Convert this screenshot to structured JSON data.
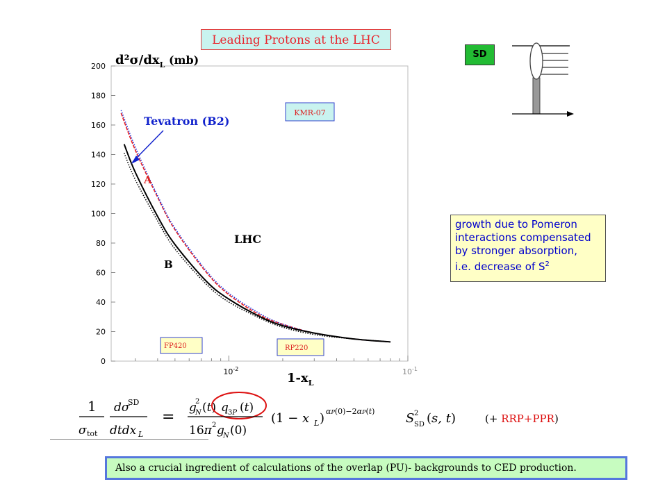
{
  "slide": {
    "title": "Leading Protons  at the LHC",
    "sd_label": "SD",
    "note_lines": [
      "growth due to Pomeron",
      "interactions compensated",
      "by stronger absorption,",
      "i.e. decrease of S"
    ],
    "note_superscript": "2",
    "rrp_prefix": "(+ ",
    "rrp_main": "RRP+PPR",
    "rrp_suffix": ")",
    "bottom_text": "Also a crucial ingredient of calculations of the overlap (PU)- backgrounds to CED production."
  },
  "chart_data": {
    "type": "line",
    "ylabel": "d²σ/dx",
    "ylabel_sub": "L",
    "ylabel_unit": " (mb)",
    "xlabel": "1-x",
    "xlabel_sub": "L",
    "x_scale": "log",
    "xlim": [
      0.0022,
      0.1
    ],
    "ylim": [
      0,
      200
    ],
    "y_ticks": [
      0,
      20,
      40,
      60,
      80,
      100,
      120,
      140,
      160,
      180,
      200
    ],
    "x_tick_labels": [
      {
        "value": 0.01,
        "base": "10",
        "exp": "-2"
      },
      {
        "value": 0.1,
        "base": "10",
        "exp": "-1"
      }
    ],
    "series": [
      {
        "name": "A",
        "color": "#ee2222",
        "style": "dashed",
        "x": [
          0.0025,
          0.003,
          0.004,
          0.005,
          0.0075,
          0.01,
          0.015,
          0.02,
          0.03,
          0.05,
          0.08
        ],
        "y": [
          168,
          143,
          111,
          89,
          60,
          45,
          31,
          25,
          19,
          15,
          13
        ]
      },
      {
        "name": "Tevatron (B2)",
        "color": "#2233dd",
        "style": "dotted",
        "x": [
          0.0025,
          0.003,
          0.004,
          0.005,
          0.0075,
          0.01,
          0.015,
          0.02,
          0.03,
          0.05,
          0.08
        ],
        "y": [
          170,
          145,
          112,
          90,
          61,
          46,
          32,
          25,
          19,
          15,
          13
        ]
      },
      {
        "name": "B",
        "color": "#000000",
        "style": "solid",
        "x": [
          0.0026,
          0.003,
          0.004,
          0.005,
          0.0075,
          0.01,
          0.015,
          0.02,
          0.03,
          0.05,
          0.08
        ],
        "y": [
          147,
          128,
          98,
          79,
          54,
          42,
          30,
          24,
          19,
          15,
          13
        ]
      },
      {
        "name": "",
        "color": "#000000",
        "style": "dotted",
        "x": [
          0.0026,
          0.003,
          0.004,
          0.005,
          0.0075,
          0.01,
          0.015,
          0.02,
          0.03,
          0.05,
          0.08
        ],
        "y": [
          141,
          123,
          95,
          76,
          52,
          40,
          29,
          23,
          18,
          15,
          13
        ]
      }
    ],
    "annotations": [
      {
        "id": "tevatron",
        "text": "Tevatron (B2)"
      },
      {
        "id": "A",
        "text": "A"
      },
      {
        "id": "B",
        "text": "B"
      },
      {
        "id": "lhc",
        "text": "LHC"
      },
      {
        "id": "kmr",
        "text": "KMR-07"
      },
      {
        "id": "fp420",
        "text": "FP420"
      },
      {
        "id": "rp220",
        "text": "RP220"
      }
    ]
  }
}
